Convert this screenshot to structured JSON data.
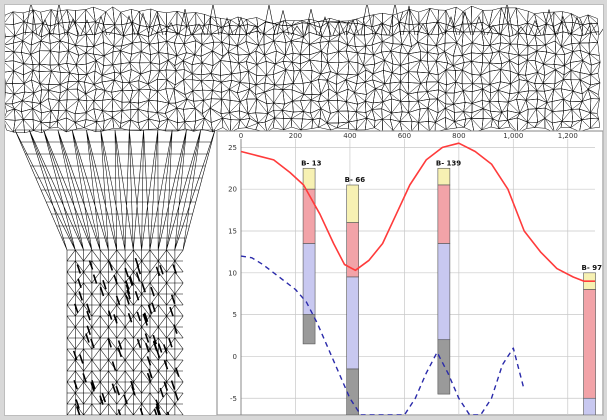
{
  "colors": {
    "mesh_stroke": "#000000",
    "plot_border": "#9a9a9a",
    "grid": "#c8c8c8",
    "ground_surface": "#ff3b3b",
    "water_table": "#2a2aaa",
    "layer_sand": "#f7f1b3",
    "layer_clay": "#f2a3a8",
    "layer_gravel": "#c8c8f0",
    "layer_rock": "#9a9a9a"
  },
  "mesh": {
    "image_type": "finite-element triangular mesh"
  },
  "chart_data": {
    "type": "line",
    "title": "",
    "xlabel": "",
    "ylabel": "",
    "xlim": [
      0,
      1300
    ],
    "ylim": [
      -7,
      26
    ],
    "x_ticks": [
      0,
      200,
      400,
      600,
      800,
      1000,
      1200
    ],
    "x_tick_labels": [
      "0",
      "200",
      "400",
      "600",
      "800",
      "1,000",
      "1,200"
    ],
    "y_ticks": [
      -5,
      0,
      5,
      10,
      15,
      20,
      25
    ],
    "y_tick_labels": [
      "-5",
      "0",
      "5",
      "10",
      "15",
      "20",
      "25"
    ],
    "grid": true,
    "series": [
      {
        "style": "solid",
        "x": [
          0,
          60,
          120,
          180,
          230,
          290,
          340,
          380,
          420,
          470,
          520,
          570,
          620,
          680,
          740,
          800,
          860,
          920,
          980,
          1040,
          1100,
          1160,
          1220,
          1260,
          1300
        ],
        "y": [
          24.5,
          24,
          23.5,
          22,
          20.5,
          17,
          13.5,
          11,
          10.3,
          11.5,
          13.5,
          17,
          20.5,
          23.5,
          25,
          25.5,
          24.5,
          23,
          20,
          15,
          12.5,
          10.5,
          9.5,
          9,
          9
        ]
      },
      {
        "style": "dashed",
        "x": [
          0,
          40,
          80,
          120,
          160,
          200,
          240,
          280,
          320,
          360,
          400,
          440,
          480,
          520,
          560,
          600,
          640,
          680,
          720,
          760,
          800,
          840,
          880,
          920,
          960,
          1000,
          1040
        ],
        "y": [
          12,
          11.8,
          11,
          10,
          9,
          8,
          6.5,
          4,
          1,
          -2,
          -5,
          -7,
          -7,
          -7,
          -7,
          -7,
          -5,
          -2,
          0.5,
          -2,
          -5,
          -7,
          -7,
          -5,
          -1,
          1,
          -4
        ]
      }
    ],
    "boreholes": [
      {
        "label": "B- 13",
        "x": 250,
        "layers": [
          [
            22.5,
            20
          ],
          [
            20,
            13.5
          ],
          [
            13.5,
            5
          ],
          [
            5,
            1.5
          ]
        ]
      },
      {
        "label": "B- 66",
        "x": 410,
        "layers": [
          [
            20.5,
            16
          ],
          [
            16,
            9.5
          ],
          [
            9.5,
            -1.5
          ],
          [
            -1.5,
            -7
          ]
        ]
      },
      {
        "label": "B- 139",
        "x": 745,
        "layers": [
          [
            22.5,
            20.5
          ],
          [
            20.5,
            13.5
          ],
          [
            13.5,
            2
          ],
          [
            2,
            -4.5
          ]
        ]
      },
      {
        "label": "B- 97",
        "x": 1280,
        "layers": [
          [
            10,
            8
          ],
          [
            8,
            -5
          ],
          [
            -5,
            -7
          ]
        ]
      }
    ],
    "layer_colors": [
      "#f7f1b3",
      "#f2a3a8",
      "#c8c8f0",
      "#9a9a9a"
    ]
  }
}
